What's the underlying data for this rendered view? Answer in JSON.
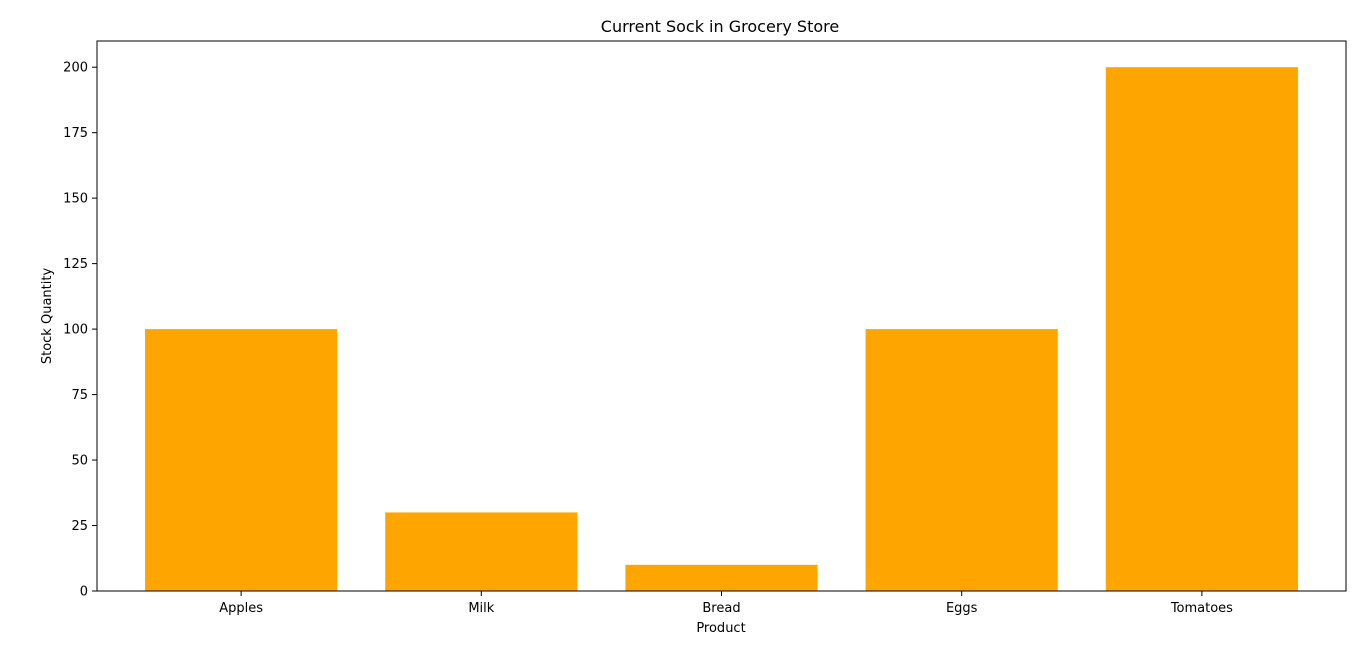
{
  "chart_data": {
    "type": "bar",
    "title": "Current Sock in Grocery Store",
    "xlabel": "Product",
    "ylabel": "Stock Quantity",
    "categories": [
      "Apples",
      "Milk",
      "Bread",
      "Eggs",
      "Tomatoes"
    ],
    "values": [
      100,
      30,
      10,
      100,
      200
    ],
    "ylim": [
      0,
      210
    ],
    "yticks": [
      0,
      25,
      50,
      75,
      100,
      125,
      150,
      175,
      200
    ],
    "bar_color": "#ffa500",
    "grid": false,
    "legend": "none"
  }
}
